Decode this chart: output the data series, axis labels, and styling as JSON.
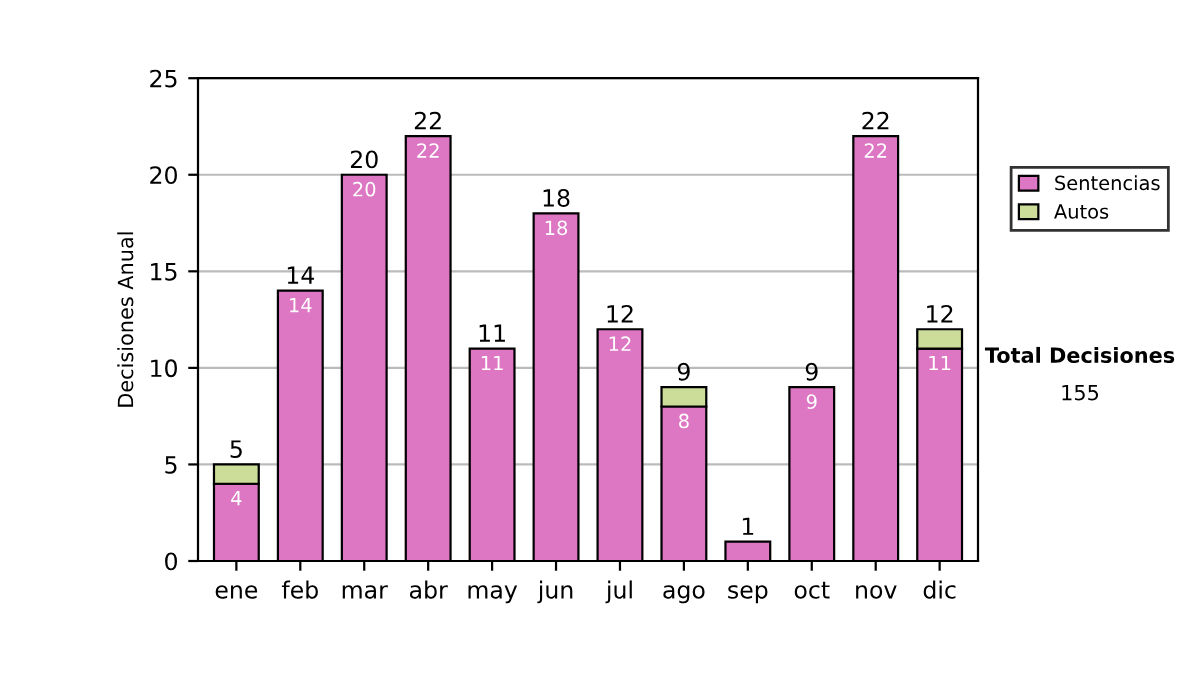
{
  "chart_data": {
    "type": "bar",
    "ylabel": "Decisiones Anual",
    "stacked": true,
    "categories": [
      "ene",
      "feb",
      "mar",
      "abr",
      "may",
      "jun",
      "jul",
      "ago",
      "sep",
      "oct",
      "nov",
      "dic"
    ],
    "series": [
      {
        "name": "Sentencias",
        "color": "#dd77c4",
        "values": [
          4,
          14,
          20,
          22,
          11,
          18,
          12,
          8,
          1,
          9,
          22,
          11
        ],
        "value_labels": [
          "4",
          "14",
          "20",
          "22",
          "11",
          "18",
          "12",
          "8",
          null,
          "9",
          "22",
          "11"
        ]
      },
      {
        "name": "Autos",
        "color": "#ccdd99",
        "values": [
          1,
          null,
          null,
          null,
          null,
          null,
          null,
          1,
          null,
          null,
          null,
          1
        ]
      }
    ],
    "totals": [
      "5",
      "14",
      "20",
      "22",
      "11",
      "18",
      "12",
      "9",
      "1",
      "9",
      "22",
      "12"
    ],
    "ylim": [
      0,
      25
    ],
    "yticks": [
      0,
      5,
      10,
      15,
      20,
      25
    ],
    "grid": "y",
    "legend": "right",
    "annotations": [
      "Total Decisiones",
      "155"
    ]
  }
}
